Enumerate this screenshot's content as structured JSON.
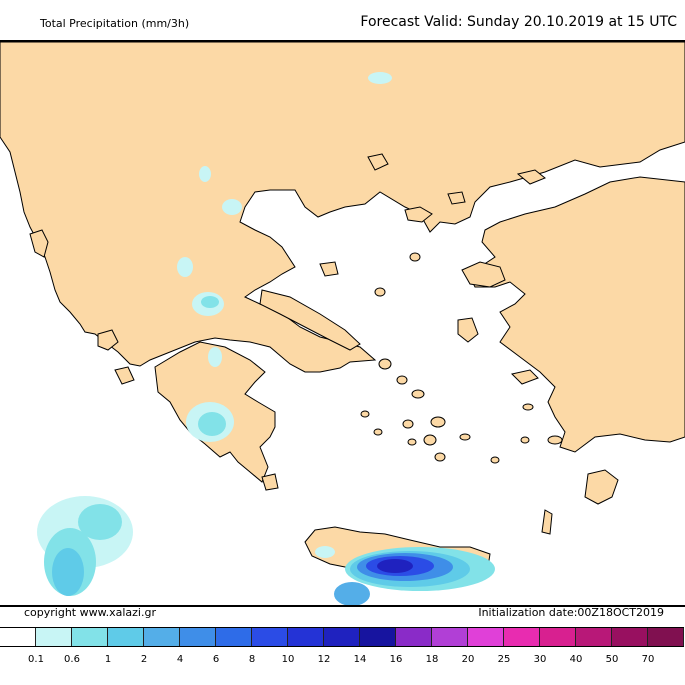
{
  "header": {
    "title": "Total Precipitation (mm/3h)",
    "valid": "Forecast Valid:   Sunday 20.10.2019 at 15 UTC"
  },
  "footer": {
    "copyright": "copyright www.xalazi.gr",
    "init": "Initialization date:00Z18OCT2019"
  },
  "colors": {
    "land": "#fcd9a6",
    "sea": "#ffffff",
    "border": "#000000"
  },
  "legend": {
    "colors": [
      "#ffffff",
      "#c8f5f5",
      "#82e2e8",
      "#5fcbe8",
      "#54aee8",
      "#3f8ee8",
      "#2e6ce8",
      "#2b4ce6",
      "#2433d6",
      "#1f22bf",
      "#17149f",
      "#8a2bc8",
      "#b13fd6",
      "#e040d8",
      "#e82cb0",
      "#d82090",
      "#b81878",
      "#981060",
      "#801050"
    ],
    "labels": [
      "0.1",
      "0.6",
      "1",
      "2",
      "4",
      "6",
      "8",
      "10",
      "12",
      "14",
      "16",
      "18",
      "20",
      "25",
      "30",
      "40",
      "50",
      "70"
    ]
  }
}
